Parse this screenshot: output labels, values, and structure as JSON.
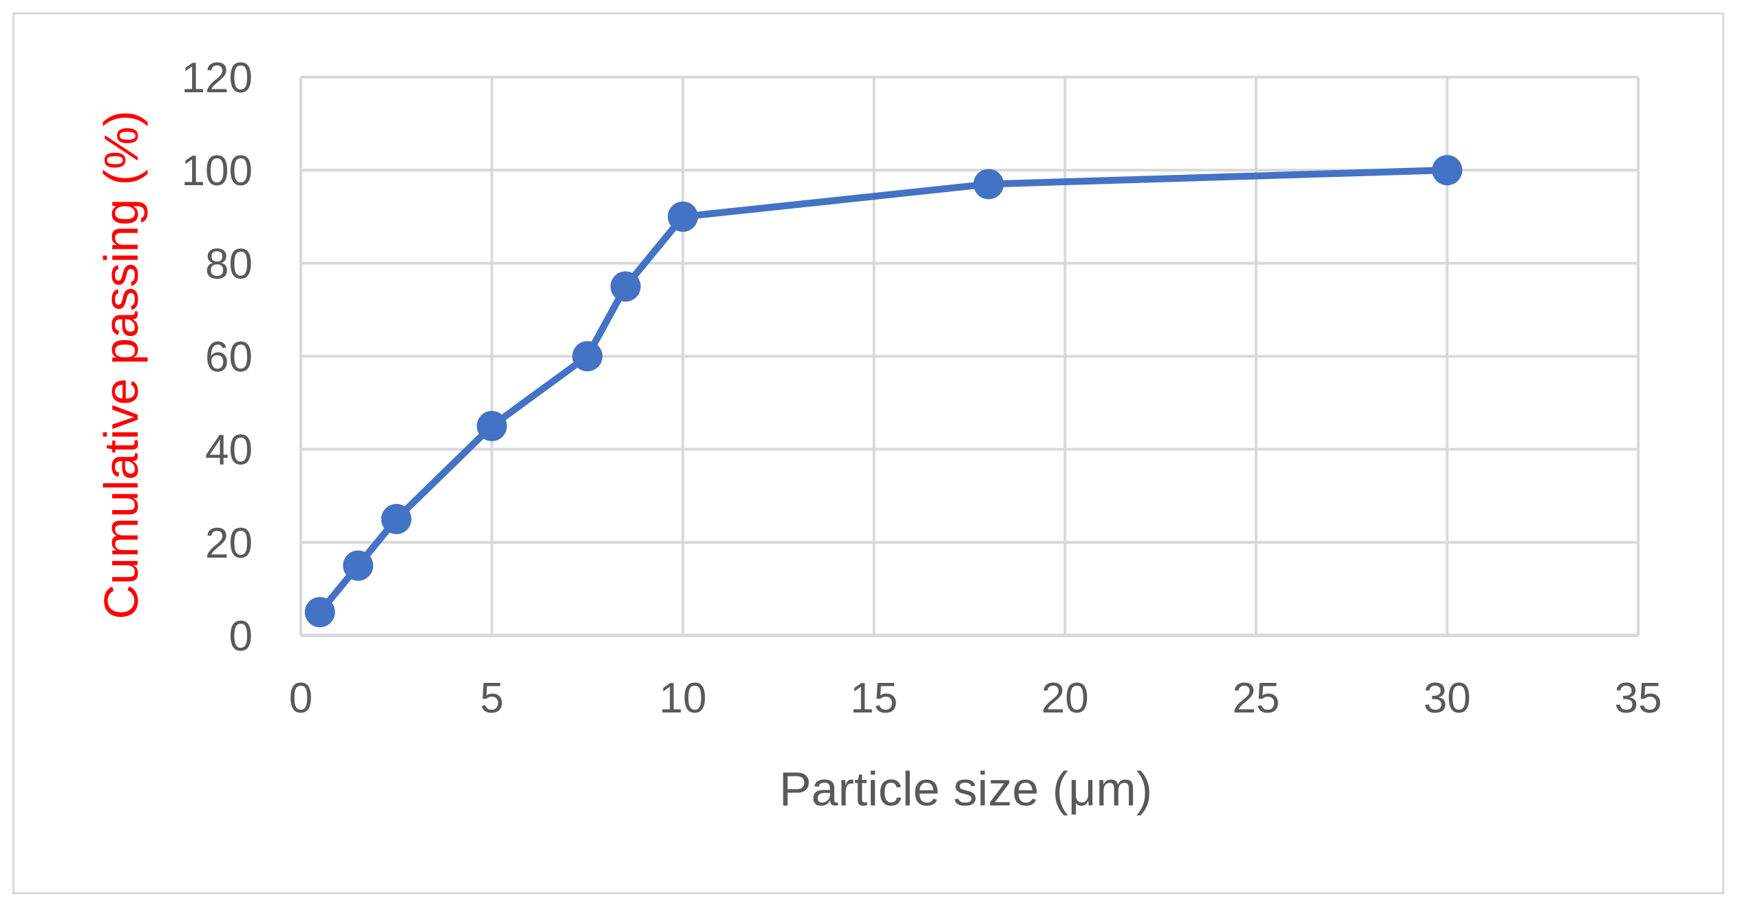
{
  "colors": {
    "series": "#4472c4",
    "grid": "#d9d9d9",
    "tick_text": "#595959",
    "ylabel_color": "#ff0000",
    "frame": "#d9d9d9"
  },
  "chart_data": {
    "type": "scatter",
    "title": "",
    "xlabel": "Particle size (μm)",
    "ylabel": "Cumulative passing (%)",
    "xlim": [
      0,
      35
    ],
    "ylim": [
      0,
      120
    ],
    "xticks": [
      "0",
      "5",
      "10",
      "15",
      "20",
      "25",
      "30",
      "35"
    ],
    "yticks": [
      "0",
      "20",
      "40",
      "60",
      "80",
      "100",
      "120"
    ],
    "grid": true,
    "legend": "none",
    "series": [
      {
        "style": "line-with-markers",
        "x": [
          0.5,
          1.5,
          2.5,
          5,
          7.5,
          8.5,
          10,
          18,
          30
        ],
        "y": [
          5,
          15,
          25,
          45,
          60,
          75,
          90,
          97,
          100
        ]
      }
    ]
  }
}
